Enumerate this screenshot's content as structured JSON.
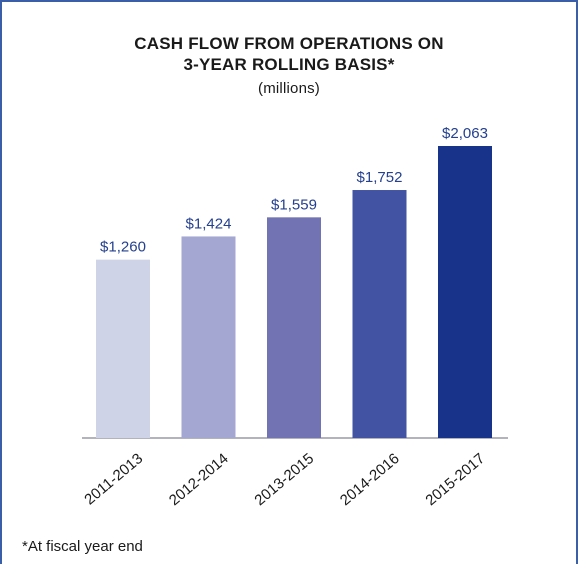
{
  "chart_data": {
    "type": "bar",
    "title_line1": "CASH FLOW FROM OPERATIONS ON",
    "title_line2": "3-YEAR ROLLING BASIS*",
    "subtitle": "(millions)",
    "categories": [
      "2011-2013",
      "2012-2014",
      "2013-2015",
      "2014-2016",
      "2015-2017"
    ],
    "values": [
      1260,
      1424,
      1559,
      1752,
      2063
    ],
    "value_labels": [
      "$1,260",
      "$1,424",
      "$1,559",
      "$1,752",
      "$2,063"
    ],
    "colors": [
      "#cfd3e8",
      "#a4a7d2",
      "#7173b3",
      "#4253a3",
      "#17338a"
    ],
    "label_color": "#24408e",
    "ylim": [
      0,
      2063
    ],
    "grid": false,
    "legend": "none"
  },
  "footnote": "*At fiscal year end"
}
